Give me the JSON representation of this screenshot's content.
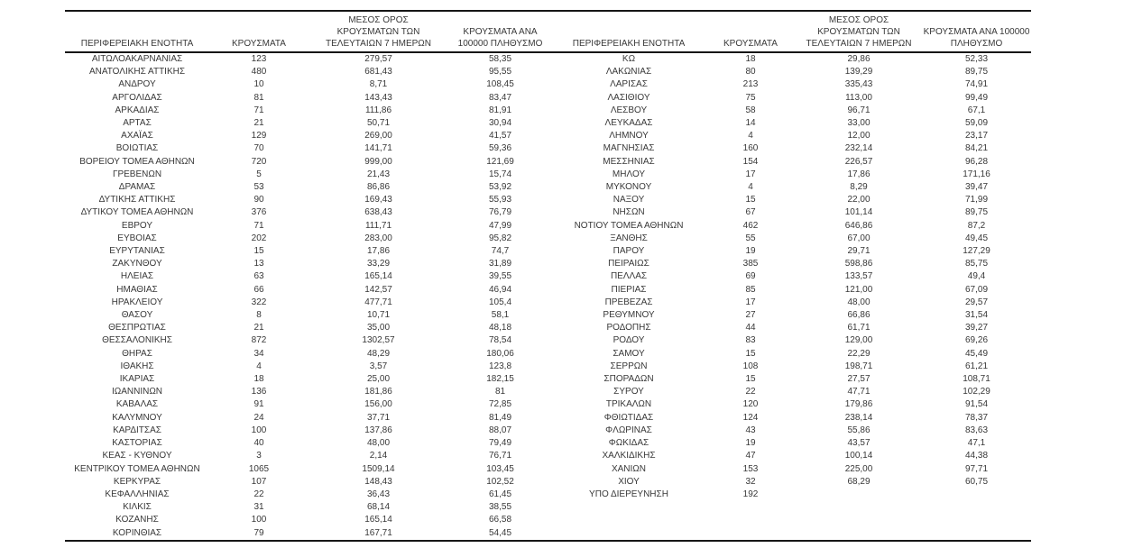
{
  "colors": {
    "background": "#ffffff",
    "text": "#383838",
    "rule": "#161616"
  },
  "headers": {
    "region": "ΠΕΡΙΦΕΡΕΙΑΚΗ ΕΝΟΤΗΤΑ",
    "cases": "ΚΡΟΥΣΜΑΤΑ",
    "avg7": "ΜΕΣΟΣ ΟΡΟΣ ΚΡΟΥΣΜΑΤΩΝ ΤΩΝ ΤΕΛΕΥΤΑΙΩΝ 7 ΗΜΕΡΩΝ",
    "per100k": "ΚΡΟΥΣΜΑΤΑ ΑΝΑ 100000 ΠΛΗΘΥΣΜΟ"
  },
  "left_rows": [
    [
      "ΑΙΤΩΛΟΑΚΑΡΝΑΝΙΑΣ",
      "123",
      "279,57",
      "58,35"
    ],
    [
      "ΑΝΑΤΟΛΙΚΗΣ ΑΤΤΙΚΗΣ",
      "480",
      "681,43",
      "95,55"
    ],
    [
      "ΑΝΔΡΟΥ",
      "10",
      "8,71",
      "108,45"
    ],
    [
      "ΑΡΓΟΛΙΔΑΣ",
      "81",
      "143,43",
      "83,47"
    ],
    [
      "ΑΡΚΑΔΙΑΣ",
      "71",
      "111,86",
      "81,91"
    ],
    [
      "ΑΡΤΑΣ",
      "21",
      "50,71",
      "30,94"
    ],
    [
      "ΑΧΑΪΑΣ",
      "129",
      "269,00",
      "41,57"
    ],
    [
      "ΒΟΙΩΤΙΑΣ",
      "70",
      "141,71",
      "59,36"
    ],
    [
      "ΒΟΡΕΙΟΥ ΤΟΜΕΑ ΑΘΗΝΩΝ",
      "720",
      "999,00",
      "121,69"
    ],
    [
      "ΓΡΕΒΕΝΩΝ",
      "5",
      "21,43",
      "15,74"
    ],
    [
      "ΔΡΑΜΑΣ",
      "53",
      "86,86",
      "53,92"
    ],
    [
      "ΔΥΤΙΚΗΣ ΑΤΤΙΚΗΣ",
      "90",
      "169,43",
      "55,93"
    ],
    [
      "ΔΥΤΙΚΟΥ ΤΟΜΕΑ ΑΘΗΝΩΝ",
      "376",
      "638,43",
      "76,79"
    ],
    [
      "ΕΒΡΟΥ",
      "71",
      "111,71",
      "47,99"
    ],
    [
      "ΕΥΒΟΙΑΣ",
      "202",
      "283,00",
      "95,82"
    ],
    [
      "ΕΥΡΥΤΑΝΙΑΣ",
      "15",
      "17,86",
      "74,7"
    ],
    [
      "ΖΑΚΥΝΘΟΥ",
      "13",
      "33,29",
      "31,89"
    ],
    [
      "ΗΛΕΙΑΣ",
      "63",
      "165,14",
      "39,55"
    ],
    [
      "ΗΜΑΘΙΑΣ",
      "66",
      "142,57",
      "46,94"
    ],
    [
      "ΗΡΑΚΛΕΙΟΥ",
      "322",
      "477,71",
      "105,4"
    ],
    [
      "ΘΑΣΟΥ",
      "8",
      "10,71",
      "58,1"
    ],
    [
      "ΘΕΣΠΡΩΤΙΑΣ",
      "21",
      "35,00",
      "48,18"
    ],
    [
      "ΘΕΣΣΑΛΟΝΙΚΗΣ",
      "872",
      "1302,57",
      "78,54"
    ],
    [
      "ΘΗΡΑΣ",
      "34",
      "48,29",
      "180,06"
    ],
    [
      "ΙΘΑΚΗΣ",
      "4",
      "3,57",
      "123,8"
    ],
    [
      "ΙΚΑΡΙΑΣ",
      "18",
      "25,00",
      "182,15"
    ],
    [
      "ΙΩΑΝΝΙΝΩΝ",
      "136",
      "181,86",
      "81"
    ],
    [
      "ΚΑΒΑΛΑΣ",
      "91",
      "156,00",
      "72,85"
    ],
    [
      "ΚΑΛΥΜΝΟΥ",
      "24",
      "37,71",
      "81,49"
    ],
    [
      "ΚΑΡΔΙΤΣΑΣ",
      "100",
      "137,86",
      "88,07"
    ],
    [
      "ΚΑΣΤΟΡΙΑΣ",
      "40",
      "48,00",
      "79,49"
    ],
    [
      "ΚΕΑΣ - ΚΥΘΝΟΥ",
      "3",
      "2,14",
      "76,71"
    ],
    [
      "ΚΕΝΤΡΙΚΟΥ ΤΟΜΕΑ ΑΘΗΝΩΝ",
      "1065",
      "1509,14",
      "103,45"
    ],
    [
      "ΚΕΡΚΥΡΑΣ",
      "107",
      "148,43",
      "102,52"
    ],
    [
      "ΚΕΦΑΛΛΗΝΙΑΣ",
      "22",
      "36,43",
      "61,45"
    ],
    [
      "ΚΙΛΚΙΣ",
      "31",
      "68,14",
      "38,55"
    ],
    [
      "ΚΟΖΑΝΗΣ",
      "100",
      "165,14",
      "66,58"
    ],
    [
      "ΚΟΡΙΝΘΙΑΣ",
      "79",
      "167,71",
      "54,45"
    ]
  ],
  "right_rows": [
    [
      "ΚΩ",
      "18",
      "29,86",
      "52,33"
    ],
    [
      "ΛΑΚΩΝΙΑΣ",
      "80",
      "139,29",
      "89,75"
    ],
    [
      "ΛΑΡΙΣΑΣ",
      "213",
      "335,43",
      "74,91"
    ],
    [
      "ΛΑΣΙΘΙΟΥ",
      "75",
      "113,00",
      "99,49"
    ],
    [
      "ΛΕΣΒΟΥ",
      "58",
      "96,71",
      "67,1"
    ],
    [
      "ΛΕΥΚΑΔΑΣ",
      "14",
      "33,00",
      "59,09"
    ],
    [
      "ΛΗΜΝΟΥ",
      "4",
      "12,00",
      "23,17"
    ],
    [
      "ΜΑΓΝΗΣΙΑΣ",
      "160",
      "232,14",
      "84,21"
    ],
    [
      "ΜΕΣΣΗΝΙΑΣ",
      "154",
      "226,57",
      "96,28"
    ],
    [
      "ΜΗΛΟΥ",
      "17",
      "17,86",
      "171,16"
    ],
    [
      "ΜΥΚΟΝΟΥ",
      "4",
      "8,29",
      "39,47"
    ],
    [
      "ΝΑΞΟΥ",
      "15",
      "22,00",
      "71,99"
    ],
    [
      "ΝΗΣΩΝ",
      "67",
      "101,14",
      "89,75"
    ],
    [
      "ΝΟΤΙΟΥ ΤΟΜΕΑ ΑΘΗΝΩΝ",
      "462",
      "646,86",
      "87,2"
    ],
    [
      "ΞΑΝΘΗΣ",
      "55",
      "67,00",
      "49,45"
    ],
    [
      "ΠΑΡΟΥ",
      "19",
      "29,71",
      "127,29"
    ],
    [
      "ΠΕΙΡΑΙΩΣ",
      "385",
      "598,86",
      "85,75"
    ],
    [
      "ΠΕΛΛΑΣ",
      "69",
      "133,57",
      "49,4"
    ],
    [
      "ΠΙΕΡΙΑΣ",
      "85",
      "121,00",
      "67,09"
    ],
    [
      "ΠΡΕΒΕΖΑΣ",
      "17",
      "48,00",
      "29,57"
    ],
    [
      "ΡΕΘΥΜΝΟΥ",
      "27",
      "66,86",
      "31,54"
    ],
    [
      "ΡΟΔΟΠΗΣ",
      "44",
      "61,71",
      "39,27"
    ],
    [
      "ΡΟΔΟΥ",
      "83",
      "129,00",
      "69,26"
    ],
    [
      "ΣΑΜΟΥ",
      "15",
      "22,29",
      "45,49"
    ],
    [
      "ΣΕΡΡΩΝ",
      "108",
      "198,71",
      "61,21"
    ],
    [
      "ΣΠΟΡΑΔΩΝ",
      "15",
      "27,57",
      "108,71"
    ],
    [
      "ΣΥΡΟΥ",
      "22",
      "47,71",
      "102,29"
    ],
    [
      "ΤΡΙΚΑΛΩΝ",
      "120",
      "179,86",
      "91,54"
    ],
    [
      "ΦΘΙΩΤΙΔΑΣ",
      "124",
      "238,14",
      "78,37"
    ],
    [
      "ΦΛΩΡΙΝΑΣ",
      "43",
      "55,86",
      "83,63"
    ],
    [
      "ΦΩΚΙΔΑΣ",
      "19",
      "43,57",
      "47,1"
    ],
    [
      "ΧΑΛΚΙΔΙΚΗΣ",
      "47",
      "100,14",
      "44,38"
    ],
    [
      "ΧΑΝΙΩΝ",
      "153",
      "225,00",
      "97,71"
    ],
    [
      "ΧΙΟΥ",
      "32",
      "68,29",
      "60,75"
    ],
    [
      "ΥΠΟ ΔΙΕΡΕΥΝΗΣΗ",
      "192",
      "",
      ""
    ]
  ]
}
